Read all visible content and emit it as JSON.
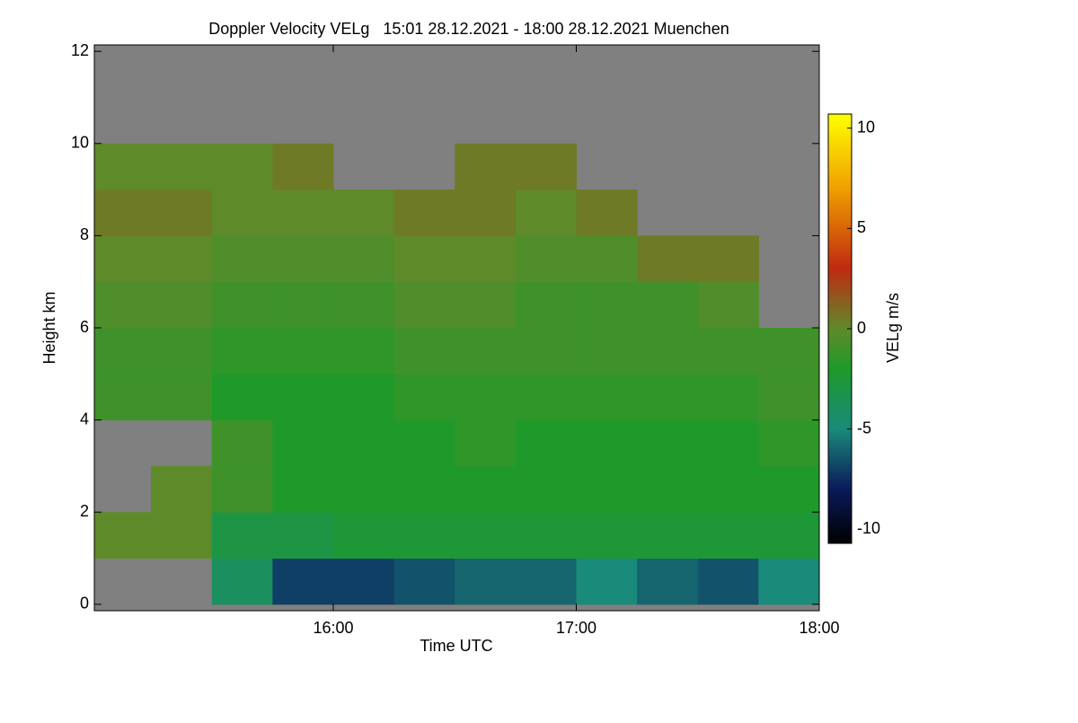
{
  "chart_data": {
    "type": "heatmap",
    "title": "Doppler Velocity VELg   15:01 28.12.2021 - 18:00 28.12.2021 Muenchen",
    "x_label": "Time UTC",
    "y_label": "Height km",
    "colorbar_label": "VELg m/s",
    "xlim": [
      15.0167,
      18.0
    ],
    "xticks": [
      {
        "value": 16,
        "label": "16:00"
      },
      {
        "value": 17,
        "label": "17:00"
      },
      {
        "value": 18,
        "label": "18:00"
      }
    ],
    "ylim": [
      -0.14,
      12.14
    ],
    "yticks": [
      0,
      2,
      4,
      6,
      8,
      10,
      12
    ],
    "zlim": [
      -10.7,
      10.7
    ],
    "zticks": [
      -10,
      -5,
      0,
      5,
      10
    ],
    "background_color": "#808080",
    "colorscale": [
      [
        -10.7,
        "#000000"
      ],
      [
        -8,
        "#0a1a5a"
      ],
      [
        -5,
        "#1a8a7a"
      ],
      [
        -2,
        "#1f9a2a"
      ],
      [
        0,
        "#5f8a2a"
      ],
      [
        3,
        "#c02a10"
      ],
      [
        7,
        "#f0a000"
      ],
      [
        10.7,
        "#ffff00"
      ]
    ],
    "x_edges": [
      15.0167,
      15.25,
      15.5,
      15.75,
      16.0,
      16.25,
      16.5,
      16.75,
      17.0,
      17.25,
      17.5,
      17.75,
      18.0
    ],
    "y_edges": [
      0,
      1,
      2,
      3,
      4,
      5,
      6,
      7,
      8,
      9,
      10,
      11,
      12
    ],
    "z": [
      [
        null,
        null,
        -4,
        -7,
        -7,
        -6.5,
        -6,
        -6,
        -5,
        -6,
        -6.5,
        -5
      ],
      [
        0,
        0,
        -3,
        -3,
        -2.5,
        -2.5,
        -2.5,
        -2.5,
        -2.5,
        -2.5,
        -2.5,
        -2.5
      ],
      [
        null,
        0,
        -1,
        -2,
        -2,
        -2,
        -2,
        -2,
        -2,
        -2,
        -2,
        -2
      ],
      [
        null,
        null,
        -1,
        -2,
        -2,
        -2,
        -1.5,
        -2,
        -2,
        -2,
        -2,
        -1.5
      ],
      [
        -1,
        -1,
        -2,
        -2,
        -2,
        -1.5,
        -1.5,
        -1.5,
        -1.5,
        -1.5,
        -1.5,
        -1
      ],
      [
        -1,
        -1,
        -1.5,
        -1.5,
        -1.5,
        -1,
        -1,
        -1,
        -1,
        -1,
        -1,
        -1
      ],
      [
        -0.5,
        -0.5,
        -1,
        -1,
        -1,
        -0.5,
        -0.5,
        -1,
        -1,
        -1,
        -0.5,
        null
      ],
      [
        0,
        0,
        -0.5,
        -0.5,
        -0.5,
        0,
        0,
        -0.5,
        -0.5,
        0.5,
        0.5,
        null
      ],
      [
        0.5,
        0.5,
        0,
        0,
        0,
        0.5,
        0.5,
        0,
        0.5,
        null,
        null,
        null
      ],
      [
        0,
        0,
        0,
        0.5,
        null,
        null,
        0.5,
        0.5,
        null,
        null,
        null,
        null
      ],
      [
        null,
        null,
        null,
        null,
        null,
        null,
        null,
        null,
        null,
        null,
        null,
        null
      ],
      [
        null,
        null,
        null,
        null,
        null,
        null,
        null,
        null,
        null,
        null,
        null,
        null
      ]
    ]
  }
}
